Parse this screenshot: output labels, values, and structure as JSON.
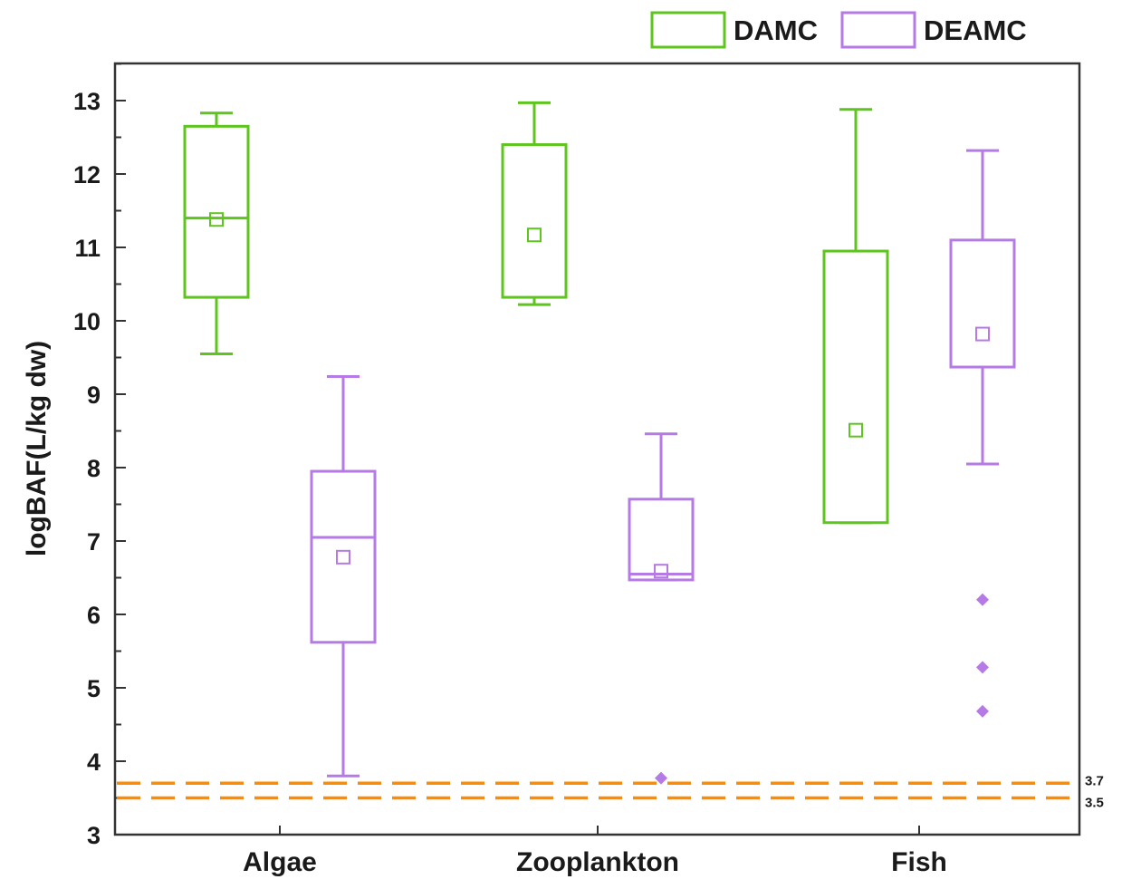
{
  "chart_data": {
    "type": "box",
    "title": "",
    "xlabel": "",
    "ylabel": "logBAF(L/kg dw)",
    "ylim": [
      3,
      13.7
    ],
    "yticks": [
      3,
      4,
      5,
      6,
      7,
      8,
      9,
      10,
      11,
      12,
      13
    ],
    "categories": [
      "Algae",
      "Zooplankton",
      "Fish"
    ],
    "legend_position": "top-right, above plot",
    "series": [
      {
        "name": "DAMC",
        "color": "#5ec41e",
        "boxes": [
          {
            "category": "Algae",
            "whisker_low": 9.55,
            "q1": 10.32,
            "median": 11.4,
            "q3": 12.65,
            "whisker_high": 12.83,
            "mean": 11.38,
            "outliers": []
          },
          {
            "category": "Zooplankton",
            "whisker_low": 10.22,
            "q1": 10.32,
            "median": null,
            "q3": 12.4,
            "whisker_high": 12.97,
            "mean": 11.17,
            "outliers": []
          },
          {
            "category": "Fish",
            "whisker_low": 7.25,
            "q1": 7.25,
            "median": null,
            "q3": 10.95,
            "whisker_high": 12.88,
            "mean": 8.51,
            "outliers": []
          }
        ]
      },
      {
        "name": "DEAMC",
        "color": "#b57ae6",
        "boxes": [
          {
            "category": "Algae",
            "whisker_low": 3.8,
            "q1": 5.62,
            "median": 7.05,
            "q3": 7.95,
            "whisker_high": 9.24,
            "mean": 6.78,
            "outliers": []
          },
          {
            "category": "Zooplankton",
            "whisker_low": 6.47,
            "q1": 6.47,
            "median": 6.55,
            "q3": 7.57,
            "whisker_high": 8.46,
            "mean": 6.59,
            "outliers": [
              3.77
            ]
          },
          {
            "category": "Fish",
            "whisker_low": 8.05,
            "q1": 9.37,
            "median": null,
            "q3": 11.1,
            "whisker_high": 12.32,
            "mean": 9.82,
            "outliers": [
              6.2,
              5.28,
              4.68
            ]
          }
        ]
      }
    ],
    "reference_lines": [
      {
        "value": 3.7,
        "label": "3.7",
        "color": "#ff8c00",
        "style": "dashed"
      },
      {
        "value": 3.5,
        "label": "3.5",
        "color": "#ff8c00",
        "style": "dashed"
      }
    ]
  }
}
